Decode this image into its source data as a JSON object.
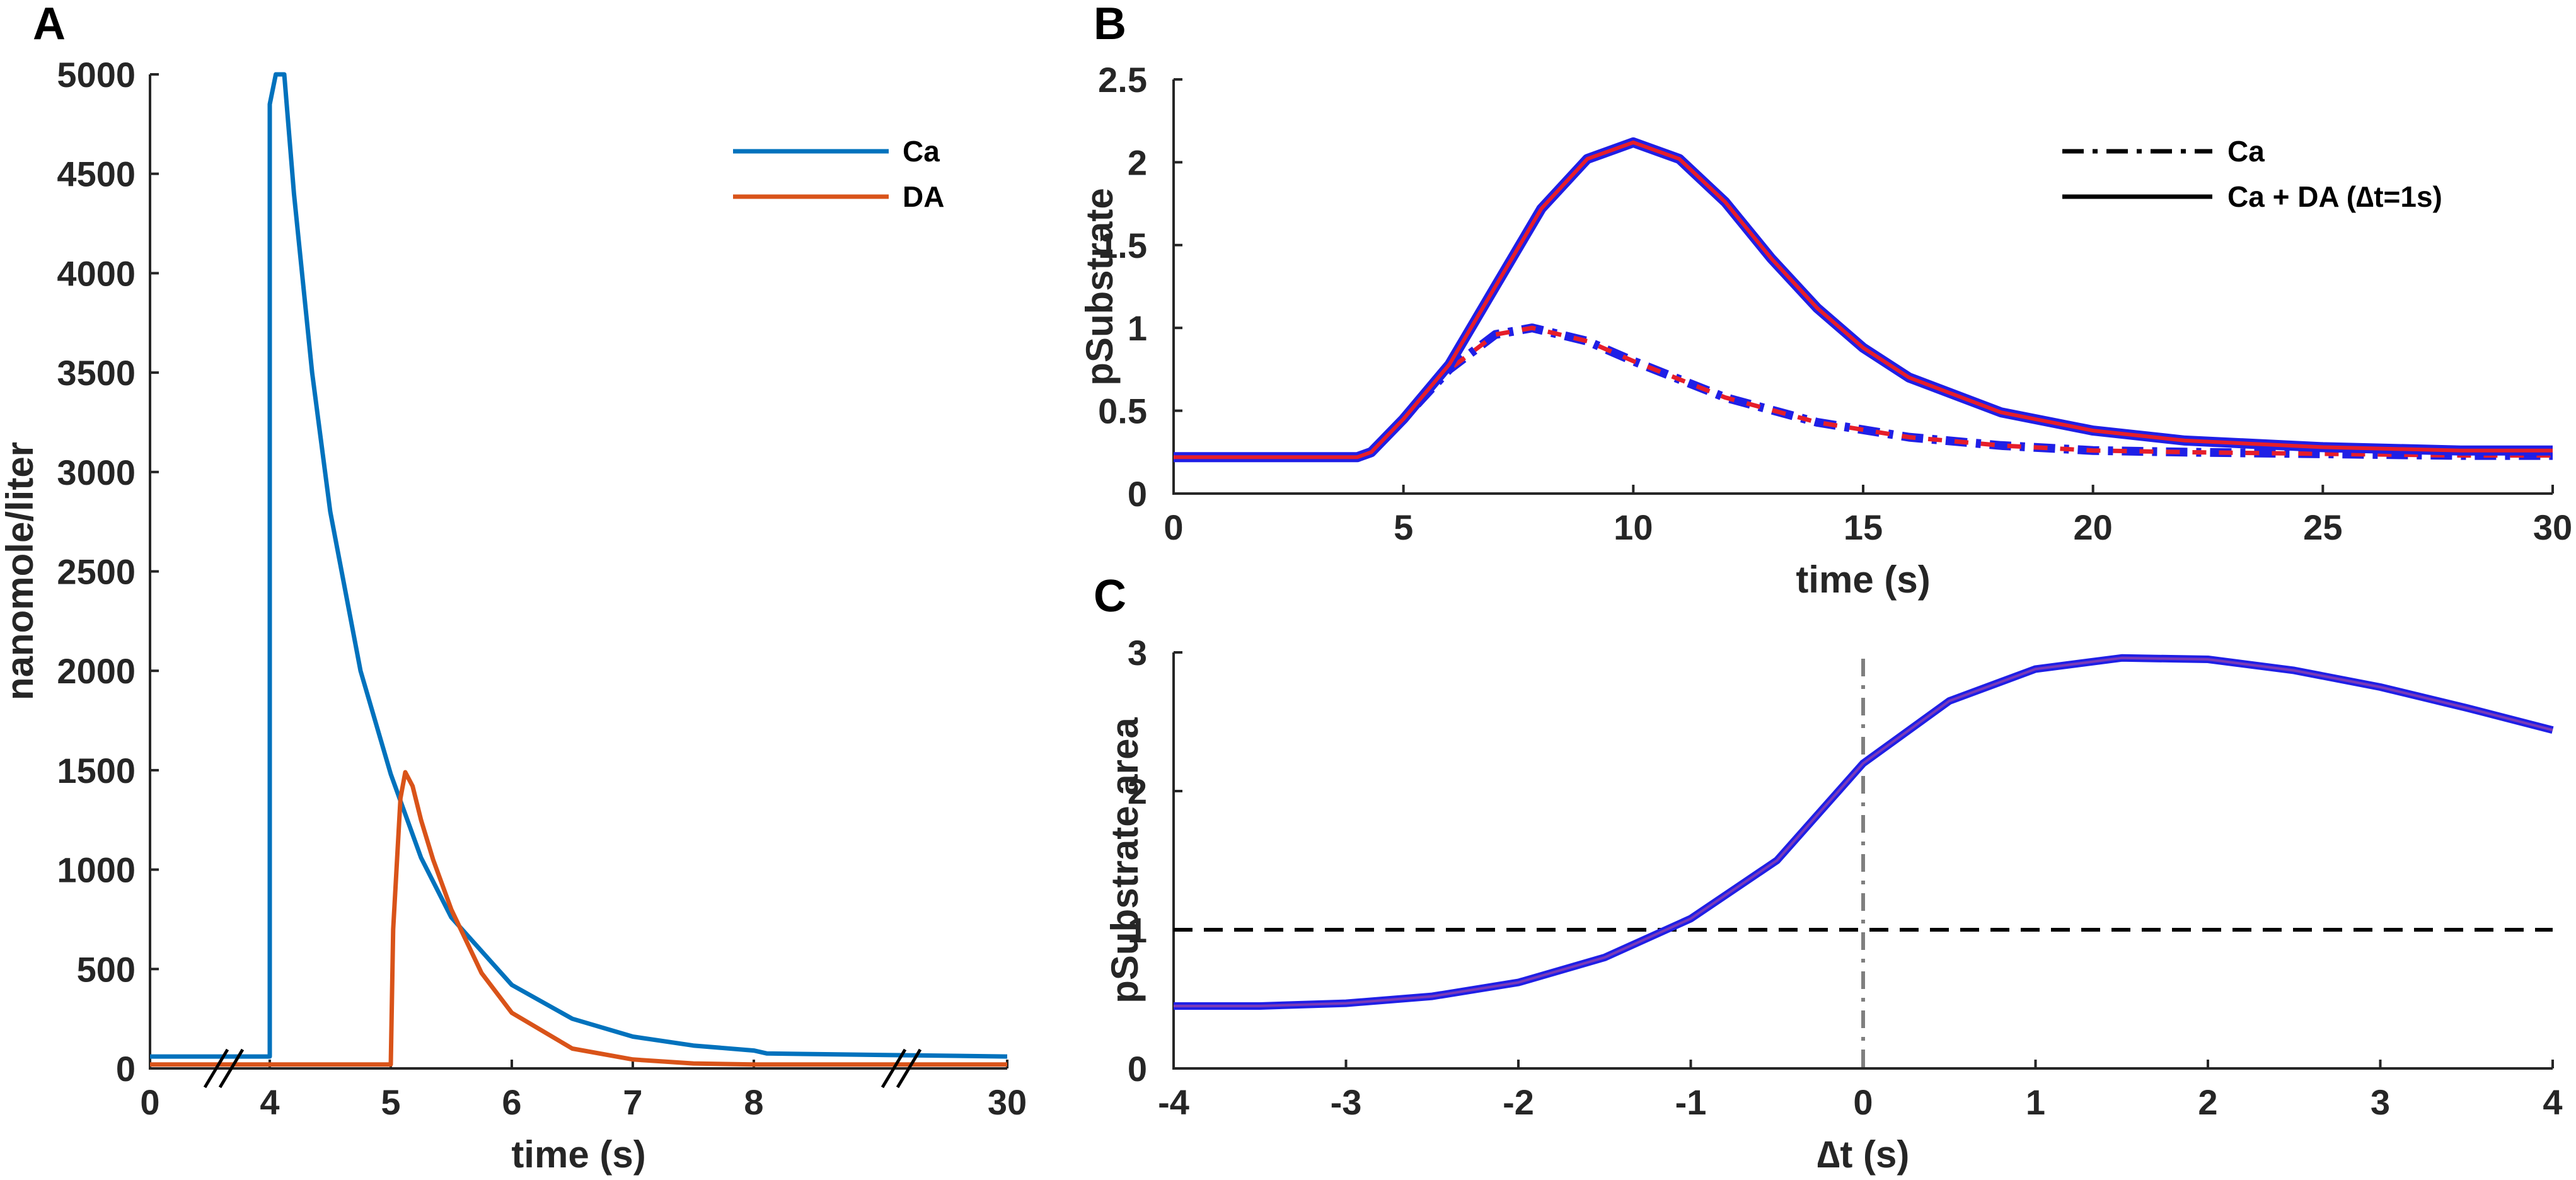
{
  "colors": {
    "ca": "#0072BD",
    "da": "#D95319",
    "blue": "#1F1FE6",
    "red": "#E61E2A",
    "axis": "#262626",
    "ref": "#7F7F7F"
  },
  "chart_data": [
    {
      "panel": "A",
      "type": "line",
      "xlabel": "time (s)",
      "ylabel": "nanomole/liter",
      "ylim": [
        0,
        5000
      ],
      "yticks": [
        0,
        500,
        1000,
        1500,
        2000,
        2500,
        3000,
        3500,
        4000,
        4500,
        5000
      ],
      "xticks": [
        "0",
        "4",
        "5",
        "6",
        "7",
        "8",
        "30"
      ],
      "axis_breaks": [
        "between 0 and 4",
        "between 8 and 30"
      ],
      "legend": {
        "position": "top-right",
        "entries": [
          "Ca",
          "DA"
        ]
      },
      "series": [
        {
          "name": "Ca",
          "color": "#0072BD",
          "x": [
            0,
            4,
            4,
            4.05,
            4.12,
            4.2,
            4.35,
            4.5,
            4.75,
            5.0,
            5.25,
            5.5,
            6.0,
            6.5,
            7.0,
            7.5,
            8.0,
            8.5,
            30
          ],
          "y": [
            60,
            60,
            4850,
            5000,
            5000,
            4400,
            3500,
            2800,
            2000,
            1480,
            1060,
            760,
            420,
            250,
            160,
            115,
            90,
            75,
            60
          ]
        },
        {
          "name": "DA",
          "color": "#D95319",
          "x": [
            0,
            5.0,
            5.02,
            5.08,
            5.12,
            5.18,
            5.25,
            5.35,
            5.5,
            5.75,
            6.0,
            6.5,
            7.0,
            7.5,
            8.0,
            30
          ],
          "y": [
            20,
            20,
            700,
            1360,
            1490,
            1420,
            1250,
            1050,
            800,
            480,
            280,
            100,
            45,
            25,
            20,
            20
          ]
        }
      ]
    },
    {
      "panel": "B",
      "type": "line",
      "xlabel": "time (s)",
      "ylabel": "pSubstrate",
      "xlim": [
        0,
        30
      ],
      "ylim": [
        0,
        2.5
      ],
      "xticks": [
        0,
        5,
        10,
        15,
        20,
        25,
        30
      ],
      "yticks": [
        0,
        0.5,
        1,
        1.5,
        2,
        2.5
      ],
      "legend": {
        "position": "top-right",
        "entries": [
          "Ca",
          "Ca + DA (∆t=1s)"
        ]
      },
      "series": [
        {
          "name": "Ca",
          "style": "dash-dot",
          "x": [
            0,
            4,
            4.3,
            5,
            6,
            7,
            7.8,
            9,
            10,
            12,
            14,
            16,
            18,
            20,
            22,
            25,
            28,
            30
          ],
          "y": [
            0.22,
            0.22,
            0.25,
            0.45,
            0.75,
            0.96,
            1.0,
            0.92,
            0.8,
            0.58,
            0.43,
            0.34,
            0.29,
            0.26,
            0.25,
            0.24,
            0.23,
            0.23
          ]
        },
        {
          "name": "Ca + DA (∆t=1s)",
          "style": "solid",
          "x": [
            0,
            4,
            4.3,
            5,
            6,
            7,
            8,
            9,
            10,
            11,
            12,
            13,
            14,
            15,
            16,
            18,
            20,
            22,
            25,
            28,
            30
          ],
          "y": [
            0.22,
            0.22,
            0.25,
            0.45,
            0.78,
            1.25,
            1.72,
            2.02,
            2.12,
            2.02,
            1.76,
            1.42,
            1.12,
            0.88,
            0.7,
            0.49,
            0.38,
            0.32,
            0.28,
            0.26,
            0.26
          ]
        }
      ]
    },
    {
      "panel": "C",
      "type": "line",
      "xlabel": "∆t (s)",
      "ylabel": "pSubstrate area",
      "xlim": [
        -4,
        4
      ],
      "ylim": [
        0,
        3
      ],
      "xticks": [
        -4,
        -3,
        -2,
        -1,
        0,
        1,
        2,
        3,
        4
      ],
      "yticks": [
        0,
        1,
        2,
        3
      ],
      "reference_lines": [
        {
          "type": "horizontal",
          "y": 1,
          "style": "dashed",
          "color": "#000000"
        },
        {
          "type": "vertical",
          "x": 0,
          "style": "dash-dot",
          "color": "#7F7F7F"
        }
      ],
      "series": [
        {
          "x": [
            -4,
            -3.5,
            -3,
            -2.5,
            -2,
            -1.5,
            -1,
            -0.5,
            0,
            0.5,
            1,
            1.5,
            2,
            2.5,
            3,
            3.5,
            4
          ],
          "y": [
            0.45,
            0.45,
            0.47,
            0.52,
            0.62,
            0.8,
            1.08,
            1.5,
            2.2,
            2.65,
            2.88,
            2.96,
            2.95,
            2.87,
            2.75,
            2.6,
            2.44
          ]
        }
      ]
    }
  ]
}
